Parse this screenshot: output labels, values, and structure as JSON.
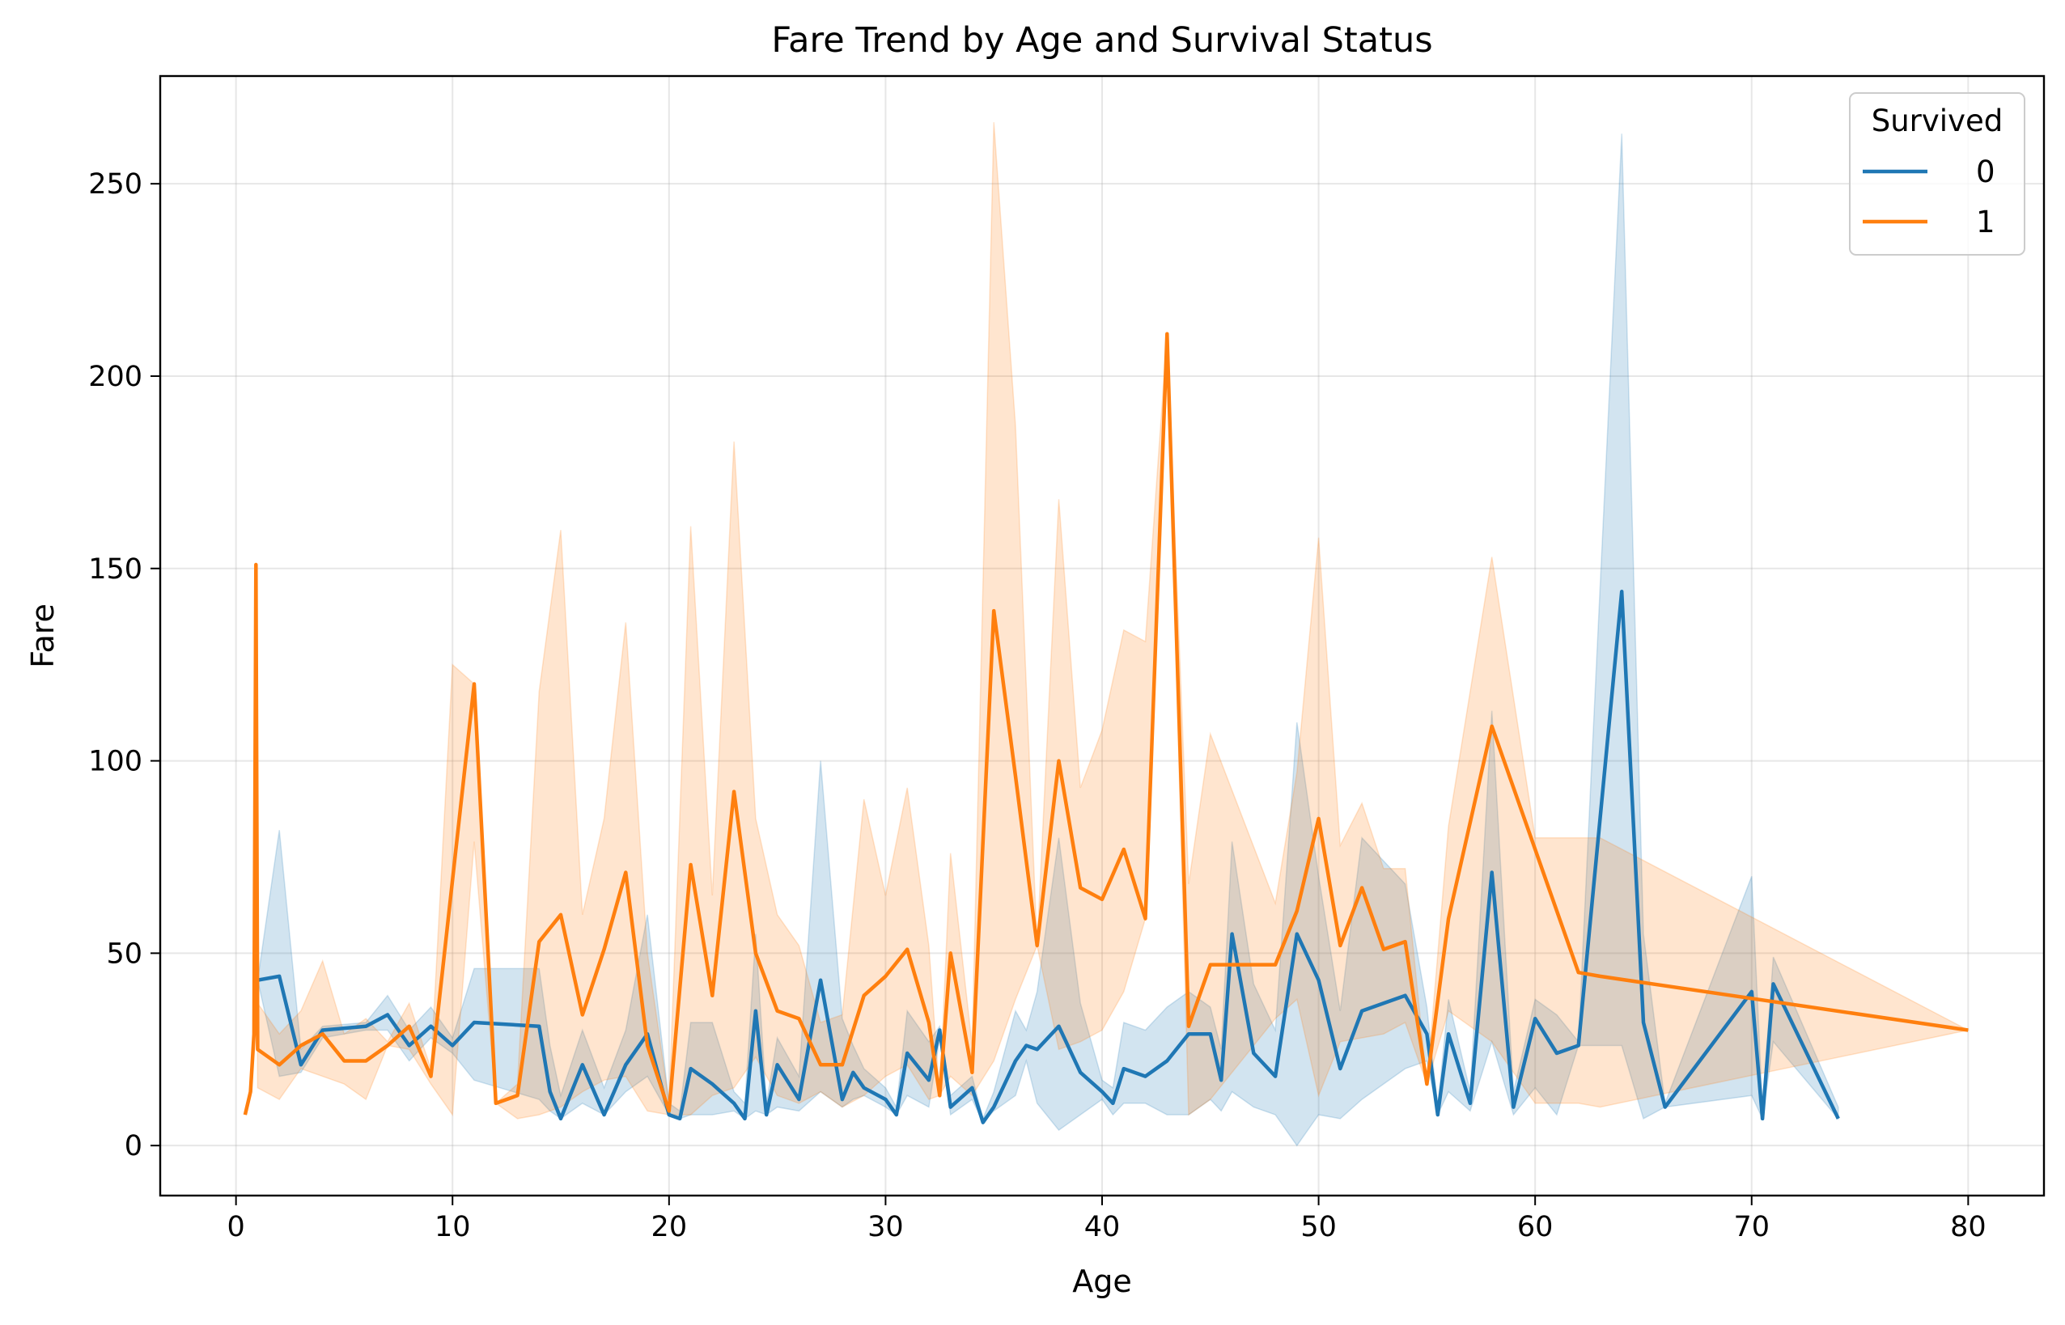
{
  "chart_data": {
    "type": "line",
    "title": "Fare Trend by Age and Survival Status",
    "xlabel": "Age",
    "ylabel": "Fare",
    "xlim": [
      -3.5,
      83.5
    ],
    "ylim": [
      -13,
      278
    ],
    "xticks": [
      0,
      10,
      20,
      30,
      40,
      50,
      60,
      70,
      80
    ],
    "yticks": [
      0,
      50,
      100,
      150,
      200,
      250
    ],
    "grid": true,
    "legend": {
      "title": "Survived",
      "placement": "upper-right"
    },
    "series": [
      {
        "name": "0",
        "color": "#1f77b4",
        "x": [
          1,
          2,
          3,
          4,
          6,
          7,
          8,
          9,
          10,
          11,
          14,
          14.5,
          15,
          16,
          17,
          18,
          19,
          20,
          20.5,
          21,
          22,
          23,
          23.5,
          24,
          24.5,
          25,
          26,
          27,
          28,
          28.5,
          29,
          30,
          30.5,
          31,
          32,
          32.5,
          33,
          34,
          34.5,
          35,
          36,
          36.5,
          37,
          38,
          39,
          40,
          40.5,
          41,
          42,
          43,
          44,
          45,
          45.5,
          46,
          47,
          48,
          49,
          50,
          51,
          52,
          54,
          55,
          55.5,
          56,
          57,
          58,
          59,
          60,
          61,
          62,
          64,
          65,
          66,
          70,
          70.5,
          71,
          74
        ],
        "y": [
          43,
          44,
          21,
          30,
          31,
          34,
          26,
          31,
          26,
          32,
          31,
          14,
          7,
          21,
          8,
          21,
          29,
          8,
          7,
          20,
          16,
          11,
          7,
          35,
          8,
          21,
          12,
          43,
          12,
          19,
          15,
          12,
          8,
          24,
          17,
          30,
          10,
          15,
          6,
          10,
          22,
          26,
          25,
          31,
          19,
          14,
          11,
          20,
          18,
          22,
          29,
          29,
          17,
          55,
          24,
          18,
          55,
          43,
          20,
          35,
          39,
          29,
          8,
          29,
          11,
          71,
          10,
          33,
          24,
          26,
          144,
          32,
          10,
          40,
          7,
          42,
          7
        ],
        "ci_lower": [
          43,
          18,
          19,
          28,
          30,
          30,
          22,
          28,
          24,
          17,
          12,
          9,
          7,
          11,
          8,
          14,
          18,
          8,
          7,
          8,
          8,
          9,
          7,
          9,
          8,
          10,
          9,
          14,
          10,
          12,
          13,
          10,
          8,
          13,
          10,
          28,
          8,
          12,
          6,
          9,
          13,
          22,
          11,
          4,
          8,
          12,
          8,
          11,
          11,
          8,
          8,
          12,
          9,
          14,
          10,
          8,
          0,
          8,
          7,
          12,
          20,
          22,
          8,
          14,
          9,
          27,
          8,
          15,
          8,
          26,
          26,
          7,
          10,
          13,
          7,
          27,
          7
        ],
        "ci_upper": [
          43,
          82,
          25,
          31,
          32,
          39,
          30,
          36,
          28,
          46,
          46,
          26,
          13,
          30,
          15,
          30,
          60,
          11,
          9,
          32,
          32,
          14,
          11,
          55,
          11,
          28,
          18,
          100,
          33,
          26,
          20,
          15,
          10,
          35,
          27,
          31,
          13,
          18,
          7,
          14,
          35,
          30,
          40,
          80,
          37,
          17,
          15,
          32,
          30,
          36,
          40,
          36,
          25,
          79,
          42,
          30,
          110,
          70,
          35,
          80,
          68,
          36,
          10,
          38,
          14,
          113,
          14,
          38,
          34,
          27,
          263,
          55,
          11,
          70,
          10,
          49,
          10
        ]
      },
      {
        "name": "1",
        "color": "#ff7f0e",
        "x": [
          0.42,
          0.67,
          0.83,
          0.92,
          1,
          2,
          3,
          4,
          5,
          6,
          7,
          8,
          9,
          10,
          11,
          12,
          13,
          14,
          15,
          16,
          17,
          18,
          19,
          20,
          21,
          22,
          23,
          24,
          25,
          26,
          27,
          28,
          29,
          30,
          31,
          32,
          32.5,
          33,
          34,
          35,
          36,
          37,
          38,
          39,
          40,
          41,
          42,
          43,
          44,
          45,
          48,
          49,
          50,
          51,
          52,
          53,
          54,
          55,
          56,
          58,
          60,
          62,
          63,
          80
        ],
        "y": [
          8,
          14,
          29,
          151,
          25,
          21,
          26,
          29,
          22,
          22,
          26,
          31,
          18,
          69,
          120,
          11,
          13,
          53,
          60,
          34,
          51,
          71,
          26,
          9,
          73,
          39,
          92,
          50,
          35,
          33,
          21,
          21,
          39,
          44,
          51,
          32,
          13,
          50,
          19,
          139,
          96,
          52,
          100,
          67,
          64,
          77,
          59,
          211,
          31,
          47,
          47,
          61,
          85,
          52,
          67,
          51,
          53,
          16,
          59,
          109,
          77,
          45,
          44,
          30
        ],
        "ci_lower": [
          8,
          14,
          29,
          151,
          15,
          12,
          20,
          18,
          16,
          12,
          26,
          25,
          16,
          8,
          79,
          11,
          7,
          8,
          10,
          14,
          17,
          18,
          9,
          8,
          8,
          13,
          15,
          23,
          13,
          11,
          14,
          10,
          13,
          18,
          21,
          12,
          13,
          18,
          13,
          22,
          38,
          52,
          25,
          27,
          30,
          40,
          59,
          211,
          8,
          12,
          33,
          38,
          13,
          27,
          28,
          29,
          32,
          16,
          35,
          27,
          11,
          11,
          10,
          30
        ],
        "ci_upper": [
          8,
          14,
          29,
          151,
          37,
          29,
          35,
          48,
          29,
          33,
          27,
          37,
          20,
          125,
          120,
          11,
          16,
          118,
          160,
          60,
          85,
          136,
          50,
          11,
          161,
          65,
          183,
          85,
          60,
          52,
          32,
          34,
          90,
          65,
          93,
          52,
          13,
          76,
          26,
          266,
          187,
          52,
          168,
          93,
          108,
          134,
          131,
          211,
          68,
          107,
          63,
          97,
          158,
          78,
          89,
          72,
          72,
          16,
          83,
          153,
          80,
          80,
          80,
          30
        ]
      }
    ]
  }
}
